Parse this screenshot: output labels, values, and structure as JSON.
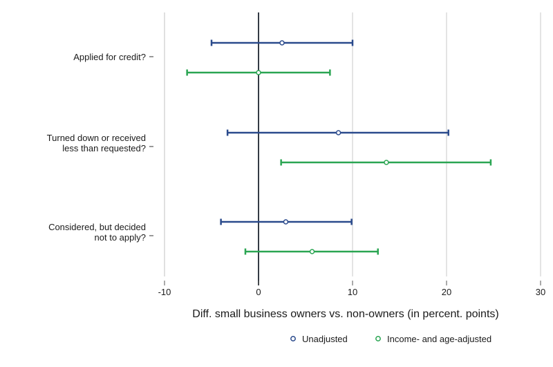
{
  "chart_data": {
    "type": "errorbar",
    "orientation": "horizontal",
    "xlabel": "Diff. small business owners vs. non-owners (in percent. points)",
    "xlim": [
      -10,
      30
    ],
    "xticks": [
      -10,
      0,
      10,
      20,
      30
    ],
    "xtick_labels": [
      "-10",
      "0",
      "10",
      "20",
      "30"
    ],
    "grid": "vertical",
    "reference_line": 0,
    "categories": [
      [
        "Applied for credit?"
      ],
      [
        "Turned down or received",
        "less than requested?"
      ],
      [
        "Considered, but decided",
        "not to apply?"
      ]
    ],
    "series": [
      {
        "name": "Unadjusted",
        "color": "#2a4a8c",
        "points": [
          {
            "estimate": 2.5,
            "lower": -5.0,
            "upper": 10.0
          },
          {
            "estimate": 8.5,
            "lower": -3.3,
            "upper": 20.2
          },
          {
            "estimate": 2.9,
            "lower": -4.0,
            "upper": 9.9
          }
        ]
      },
      {
        "name": "Income- and age-adjusted",
        "color": "#2aa552",
        "points": [
          {
            "estimate": 0.0,
            "lower": -7.6,
            "upper": 7.6
          },
          {
            "estimate": 13.6,
            "lower": 2.4,
            "upper": 24.7
          },
          {
            "estimate": 5.7,
            "lower": -1.4,
            "upper": 12.7
          }
        ]
      }
    ],
    "legend": "bottom"
  }
}
